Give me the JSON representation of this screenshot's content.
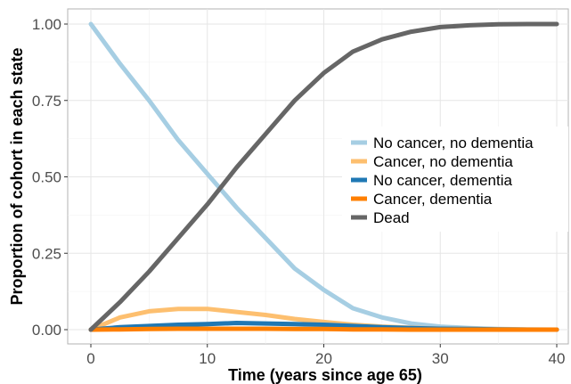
{
  "chart_data": {
    "type": "line",
    "title": "",
    "xlabel": "Time (years since age 65)",
    "ylabel": "Proportion of cohort in each state",
    "xlim": [
      0,
      40
    ],
    "ylim": [
      0,
      1
    ],
    "x_ticks": [
      0,
      10,
      20,
      30,
      40
    ],
    "x_tick_labels": [
      "0",
      "10",
      "20",
      "30",
      "40"
    ],
    "y_ticks": [
      0,
      0.25,
      0.5,
      0.75,
      1
    ],
    "y_tick_labels": [
      "0.00",
      "0.25",
      "0.50",
      "0.75",
      "1.00"
    ],
    "grid": true,
    "legend_position": "right",
    "x": [
      0,
      2.5,
      5,
      7.5,
      10,
      12.5,
      15,
      17.5,
      20,
      22.5,
      25,
      27.5,
      30,
      32.5,
      35,
      37.5,
      40
    ],
    "series": [
      {
        "name": "No cancer, no dementia",
        "color": "#a6cee3",
        "values": [
          1.0,
          0.87,
          0.75,
          0.62,
          0.51,
          0.4,
          0.3,
          0.2,
          0.13,
          0.07,
          0.04,
          0.02,
          0.01,
          0.005,
          0.002,
          0.001,
          0.0
        ]
      },
      {
        "name": "Cancer, no dementia",
        "color": "#fdbf6f",
        "values": [
          0.0,
          0.04,
          0.06,
          0.068,
          0.068,
          0.058,
          0.048,
          0.035,
          0.025,
          0.016,
          0.01,
          0.006,
          0.003,
          0.002,
          0.001,
          0.0,
          0.0
        ]
      },
      {
        "name": "No cancer, dementia",
        "color": "#1f78b4",
        "values": [
          0.0,
          0.008,
          0.012,
          0.016,
          0.018,
          0.022,
          0.02,
          0.018,
          0.016,
          0.012,
          0.008,
          0.005,
          0.003,
          0.002,
          0.001,
          0.0,
          0.0
        ]
      },
      {
        "name": "Cancer, dementia",
        "color": "#ff7f00",
        "values": [
          0.0,
          0.001,
          0.002,
          0.003,
          0.003,
          0.003,
          0.003,
          0.002,
          0.002,
          0.001,
          0.001,
          0.0,
          0.0,
          0.0,
          0.0,
          0.0,
          0.0
        ]
      },
      {
        "name": "Dead",
        "color": "#666666",
        "values": [
          0.0,
          0.09,
          0.19,
          0.3,
          0.41,
          0.53,
          0.64,
          0.75,
          0.84,
          0.91,
          0.95,
          0.975,
          0.99,
          0.996,
          0.999,
          1.0,
          1.0
        ]
      }
    ]
  }
}
